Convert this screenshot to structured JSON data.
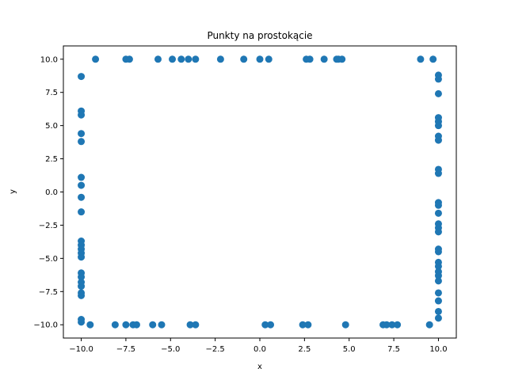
{
  "chart_data": {
    "type": "scatter",
    "title": "Punkty na prostokącie",
    "xlabel": "x",
    "ylabel": "y",
    "xlim": [
      -11.0,
      11.0
    ],
    "ylim": [
      -11.0,
      11.0
    ],
    "grid": false,
    "marker_color": "#1f77b4",
    "x_ticks": [
      "−10.0",
      "−7.5",
      "−5.0",
      "−2.5",
      "0.0",
      "2.5",
      "5.0",
      "7.5",
      "10.0"
    ],
    "y_ticks": [
      "−10.0",
      "−7.5",
      "−5.0",
      "−2.5",
      "0.0",
      "2.5",
      "5.0",
      "7.5",
      "10.0"
    ],
    "x_tick_values": [
      -10,
      -7.5,
      -5,
      -2.5,
      0,
      2.5,
      5,
      7.5,
      10
    ],
    "y_tick_values": [
      -10,
      -7.5,
      -5,
      -2.5,
      0,
      2.5,
      5,
      7.5,
      10
    ],
    "points": [
      [
        -9.2,
        10
      ],
      [
        -7.5,
        10
      ],
      [
        -7.3,
        10
      ],
      [
        -5.7,
        10
      ],
      [
        -4.9,
        10
      ],
      [
        -4.4,
        10
      ],
      [
        -4.0,
        10
      ],
      [
        -3.6,
        10
      ],
      [
        -2.2,
        10
      ],
      [
        -0.9,
        10
      ],
      [
        0.0,
        10
      ],
      [
        0.5,
        10
      ],
      [
        2.6,
        10
      ],
      [
        2.8,
        10
      ],
      [
        3.6,
        10
      ],
      [
        4.3,
        10
      ],
      [
        4.4,
        10
      ],
      [
        4.6,
        10
      ],
      [
        9.0,
        10
      ],
      [
        9.7,
        10
      ],
      [
        -9.5,
        -10
      ],
      [
        -8.1,
        -10
      ],
      [
        -7.5,
        -10
      ],
      [
        -7.1,
        -10
      ],
      [
        -6.9,
        -10
      ],
      [
        -6.0,
        -10
      ],
      [
        -5.5,
        -10
      ],
      [
        -3.9,
        -10
      ],
      [
        -3.6,
        -10
      ],
      [
        0.3,
        -10
      ],
      [
        0.6,
        -10
      ],
      [
        2.4,
        -10
      ],
      [
        2.7,
        -10
      ],
      [
        4.8,
        -10
      ],
      [
        6.9,
        -10
      ],
      [
        7.1,
        -10
      ],
      [
        7.4,
        -10
      ],
      [
        7.7,
        -10
      ],
      [
        9.5,
        -10
      ],
      [
        -10,
        8.7
      ],
      [
        -10,
        6.1
      ],
      [
        -10,
        5.8
      ],
      [
        -10,
        4.4
      ],
      [
        -10,
        3.8
      ],
      [
        -10,
        1.1
      ],
      [
        -10,
        0.5
      ],
      [
        -10,
        -0.4
      ],
      [
        -10,
        -1.5
      ],
      [
        -10,
        -3.7
      ],
      [
        -10,
        -4.0
      ],
      [
        -10,
        -4.3
      ],
      [
        -10,
        -4.6
      ],
      [
        -10,
        -4.9
      ],
      [
        -10,
        -6.1
      ],
      [
        -10,
        -6.4
      ],
      [
        -10,
        -6.8
      ],
      [
        -10,
        -7.1
      ],
      [
        -10,
        -7.6
      ],
      [
        -10,
        -7.8
      ],
      [
        -10,
        -9.6
      ],
      [
        -10,
        -9.8
      ],
      [
        10,
        8.8
      ],
      [
        10,
        8.5
      ],
      [
        10,
        7.4
      ],
      [
        10,
        5.6
      ],
      [
        10,
        5.3
      ],
      [
        10,
        5.0
      ],
      [
        10,
        4.2
      ],
      [
        10,
        3.9
      ],
      [
        10,
        1.7
      ],
      [
        10,
        1.4
      ],
      [
        10,
        -0.8
      ],
      [
        10,
        -1.0
      ],
      [
        10,
        -1.6
      ],
      [
        10,
        -2.4
      ],
      [
        10,
        -2.7
      ],
      [
        10,
        -3.0
      ],
      [
        10,
        -4.3
      ],
      [
        10,
        -4.5
      ],
      [
        10,
        -5.3
      ],
      [
        10,
        -5.6
      ],
      [
        10,
        -6.0
      ],
      [
        10,
        -6.3
      ],
      [
        10,
        -6.7
      ],
      [
        10,
        -7.6
      ],
      [
        10,
        -8.2
      ],
      [
        10,
        -9.0
      ],
      [
        10,
        -9.5
      ]
    ]
  }
}
